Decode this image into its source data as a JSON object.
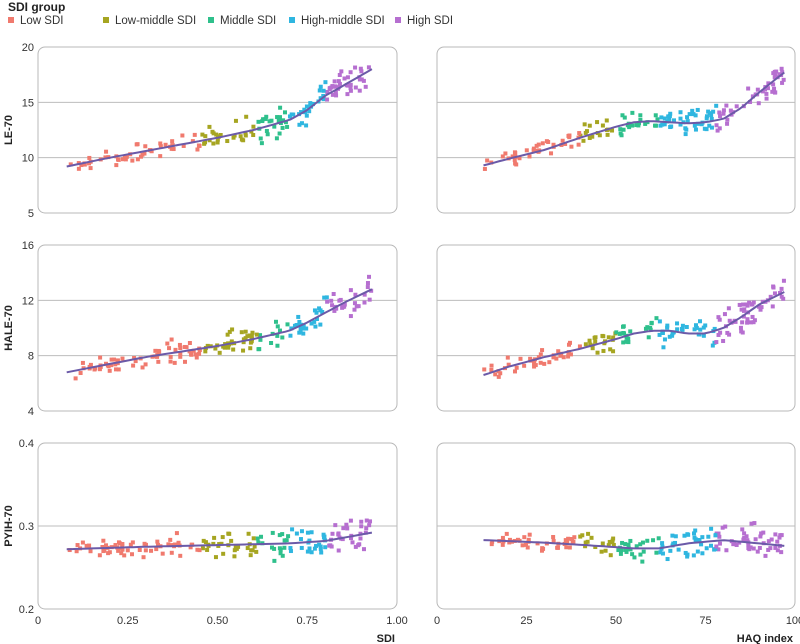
{
  "chart_data": {
    "type": "scatter",
    "legend": {
      "title": "SDI group",
      "placement": "top-left",
      "groups": [
        {
          "key": "low",
          "label": "Low SDI",
          "color": "#f07a6e"
        },
        {
          "key": "lowmid",
          "label": "Low-middle SDI",
          "color": "#a6a521"
        },
        {
          "key": "mid",
          "label": "Middle SDI",
          "color": "#2fc08c"
        },
        {
          "key": "highmid",
          "label": "High-middle SDI",
          "color": "#2fb6e0"
        },
        {
          "key": "high",
          "label": "High SDI",
          "color": "#b66fd0"
        }
      ]
    },
    "trend_color": "#6b5aa8",
    "columns": [
      {
        "xlabel": "SDI",
        "xlim": [
          0,
          1
        ],
        "xticks": [
          0,
          0.25,
          0.5,
          0.75,
          1
        ],
        "xtick_labels": [
          "0",
          "0.25",
          "0.50",
          "0.75",
          "1.00"
        ],
        "group_bounds": [
          0.08,
          0.455,
          0.61,
          0.7,
          0.805,
          0.93
        ]
      },
      {
        "xlabel": "HAQ index",
        "xlim": [
          0,
          100
        ],
        "xticks": [
          0,
          25,
          50,
          75,
          100
        ],
        "xtick_labels": [
          "0",
          "25",
          "50",
          "75",
          "100"
        ],
        "group_bounds": [
          13,
          40,
          50,
          62,
          78,
          97
        ]
      }
    ],
    "rows": [
      {
        "ylabel": "LE-70",
        "ylim": [
          5,
          20
        ],
        "yticks": [
          5,
          10,
          15,
          20
        ],
        "ytick_labels": [
          "5",
          "10",
          "15",
          "20"
        ],
        "gridlines": [
          10,
          15
        ],
        "n_points": 170
      },
      {
        "ylabel": "HALE-70",
        "ylim": [
          4,
          16
        ],
        "yticks": [
          4,
          8,
          12,
          16
        ],
        "ytick_labels": [
          "4",
          "8",
          "12",
          "16"
        ],
        "gridlines": [
          8,
          12
        ],
        "n_points": 170
      },
      {
        "ylabel": "PYIH-70",
        "ylim": [
          0.2,
          0.4
        ],
        "yticks": [
          0.2,
          0.3,
          0.4
        ],
        "ytick_labels": [
          "0.2",
          "0.3",
          "0.4"
        ],
        "gridlines": [
          0.3
        ],
        "n_points": 170
      }
    ],
    "trends": [
      {
        "row": 0,
        "col": 0,
        "x": [
          0.08,
          0.2,
          0.3,
          0.4,
          0.5,
          0.6,
          0.7,
          0.75,
          0.8,
          0.85,
          0.93
        ],
        "y": [
          9.2,
          10.0,
          10.6,
          11.2,
          11.8,
          12.5,
          13.4,
          14.3,
          15.6,
          16.5,
          18.0
        ],
        "noise": 1.3
      },
      {
        "row": 0,
        "col": 1,
        "x": [
          13,
          20,
          30,
          40,
          50,
          55,
          60,
          65,
          70,
          75,
          80,
          85,
          90,
          97
        ],
        "y": [
          9.3,
          9.9,
          10.7,
          11.8,
          12.8,
          13.2,
          13.3,
          13.2,
          13.1,
          13.2,
          13.5,
          14.5,
          15.9,
          17.7
        ],
        "noise": 1.3
      },
      {
        "row": 1,
        "col": 0,
        "x": [
          0.08,
          0.2,
          0.3,
          0.4,
          0.5,
          0.6,
          0.7,
          0.75,
          0.8,
          0.85,
          0.93
        ],
        "y": [
          6.8,
          7.4,
          7.9,
          8.3,
          8.7,
          9.2,
          9.8,
          10.4,
          11.1,
          11.8,
          12.8
        ],
        "noise": 1.1
      },
      {
        "row": 1,
        "col": 1,
        "x": [
          13,
          20,
          30,
          40,
          50,
          55,
          60,
          65,
          70,
          75,
          80,
          85,
          90,
          97
        ],
        "y": [
          6.6,
          7.2,
          7.9,
          8.5,
          9.2,
          9.6,
          9.8,
          9.8,
          9.6,
          9.6,
          10.0,
          10.8,
          11.7,
          12.6
        ],
        "noise": 1.1
      },
      {
        "row": 2,
        "col": 0,
        "x": [
          0.08,
          0.3,
          0.5,
          0.7,
          0.8,
          0.93
        ],
        "y": [
          0.272,
          0.275,
          0.277,
          0.279,
          0.282,
          0.292
        ],
        "noise": 0.018
      },
      {
        "row": 2,
        "col": 1,
        "x": [
          13,
          30,
          45,
          55,
          62,
          70,
          80,
          90,
          97
        ],
        "y": [
          0.283,
          0.28,
          0.276,
          0.273,
          0.273,
          0.279,
          0.283,
          0.279,
          0.276
        ],
        "noise": 0.018
      }
    ]
  }
}
